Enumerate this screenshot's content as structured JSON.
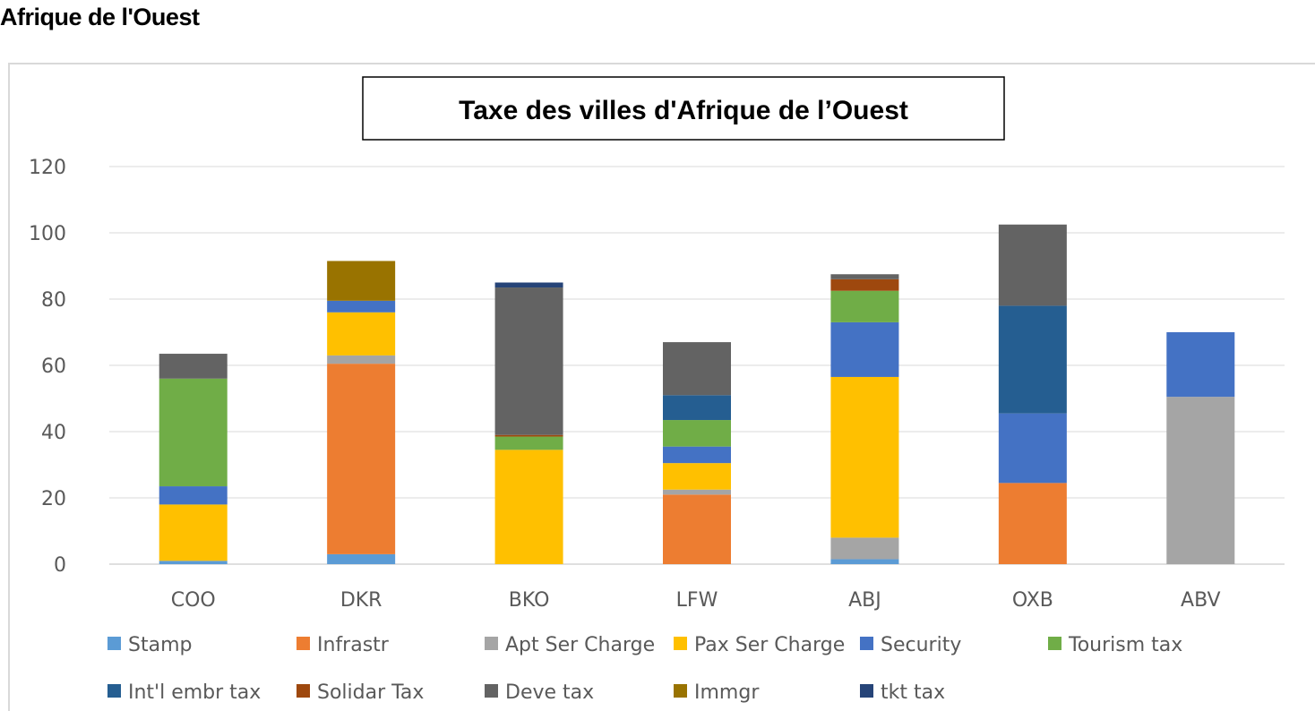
{
  "page": {
    "heading": "Afrique de l'Ouest"
  },
  "colors": {
    "Stamp": "#5b9bd5",
    "Infrastr": "#ed7d31",
    "Apt Ser Charge": "#a5a5a5",
    "Pax Ser Charge": "#ffc000",
    "Security": "#4472c4",
    "Tourism tax": "#70ad47",
    "Int'l embr tax": "#255e91",
    "Solidar Tax": "#9e480e",
    "Deve tax": "#636363",
    "Immgr": "#997300",
    "tkt tax": "#264478"
  },
  "chart_data": {
    "type": "bar",
    "stacked": true,
    "title": "Taxe des villes d'Afrique de l’Ouest",
    "xlabel": "",
    "ylabel": "",
    "ylim": [
      0,
      120
    ],
    "yticks": [
      "0",
      "20",
      "40",
      "60",
      "80",
      "100",
      "120"
    ],
    "grid": true,
    "legend_position": "bottom",
    "categories": [
      "COO",
      "DKR",
      "BKO",
      "LFW",
      "ABJ",
      "OXB",
      "ABV"
    ],
    "series": [
      {
        "name": "Stamp",
        "values": [
          1,
          3,
          0,
          0,
          1.5,
          0,
          0
        ]
      },
      {
        "name": "Infrastr",
        "values": [
          0,
          57.5,
          0,
          21,
          0,
          24.5,
          0
        ]
      },
      {
        "name": "Apt Ser Charge",
        "values": [
          0,
          2.5,
          0,
          1.5,
          6.5,
          0,
          50.5
        ]
      },
      {
        "name": "Pax Ser Charge",
        "values": [
          17,
          13,
          34.5,
          8,
          48.5,
          0,
          0
        ]
      },
      {
        "name": "Security",
        "values": [
          5.5,
          3.5,
          0,
          5,
          16.5,
          21,
          19.5
        ]
      },
      {
        "name": "Tourism tax",
        "values": [
          32.5,
          0,
          4,
          8,
          9.5,
          0,
          0
        ]
      },
      {
        "name": "Int'l embr tax",
        "values": [
          0,
          0,
          0,
          7.5,
          0,
          32.5,
          0
        ]
      },
      {
        "name": "Solidar Tax",
        "values": [
          0,
          0,
          0.5,
          0,
          3.5,
          0,
          0
        ]
      },
      {
        "name": "Deve tax",
        "values": [
          7.5,
          0,
          44.5,
          16,
          1.5,
          24.5,
          0
        ]
      },
      {
        "name": "Immgr",
        "values": [
          0,
          12,
          0,
          0,
          0,
          0,
          0
        ]
      },
      {
        "name": "tkt tax",
        "values": [
          0,
          0,
          1.5,
          0,
          0,
          0,
          0
        ]
      }
    ]
  }
}
